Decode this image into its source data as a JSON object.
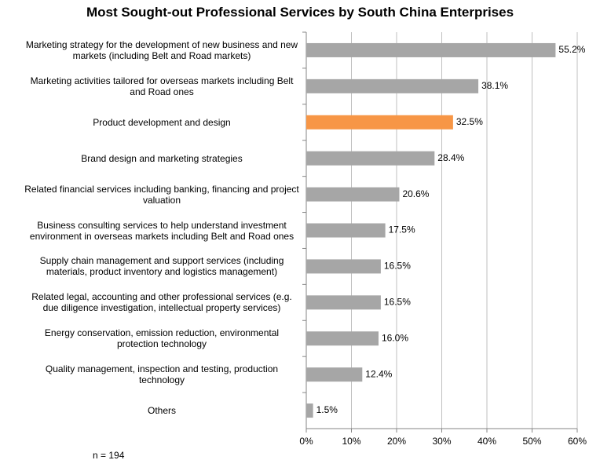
{
  "chart_data": {
    "type": "bar",
    "orientation": "horizontal",
    "title": "Most Sought-out Professional Services by South China Enterprises",
    "categories": [
      "Marketing strategy for the development of new business and new markets (including Belt and Road markets)",
      "Marketing activities tailored for overseas markets including Belt and Road ones",
      "Product development and design",
      "Brand design and marketing strategies",
      "Related financial services including banking, financing and project valuation",
      "Business consulting services to help understand investment environment in overseas markets including Belt and Road ones",
      "Supply chain management and support services (including materials, product inventory and logistics management)",
      "Related legal, accounting and other professional services (e.g. due diligence investigation, intellectual property services)",
      "Energy conservation, emission reduction, environmental protection technology",
      "Quality management, inspection and testing, production technology",
      "Others"
    ],
    "values": [
      55.2,
      38.1,
      32.5,
      28.4,
      20.6,
      17.5,
      16.5,
      16.5,
      16.0,
      12.4,
      1.5
    ],
    "value_labels": [
      "55.2%",
      "38.1%",
      "32.5%",
      "28.4%",
      "20.6%",
      "17.5%",
      "16.5%",
      "16.5%",
      "16.0%",
      "12.4%",
      "1.5%"
    ],
    "colors": [
      "#a6a6a6",
      "#a6a6a6",
      "#f79646",
      "#a6a6a6",
      "#a6a6a6",
      "#a6a6a6",
      "#a6a6a6",
      "#a6a6a6",
      "#a6a6a6",
      "#a6a6a6",
      "#a6a6a6"
    ],
    "xlim": [
      0,
      60
    ],
    "xticks": [
      {
        "value": 0,
        "label": "0%"
      },
      {
        "value": 10,
        "label": "10%"
      },
      {
        "value": 20,
        "label": "20%"
      },
      {
        "value": 30,
        "label": "30%"
      },
      {
        "value": 40,
        "label": "40%"
      },
      {
        "value": 50,
        "label": "50%"
      },
      {
        "value": 60,
        "label": "60%"
      }
    ],
    "grid": true,
    "note": "n = 194"
  }
}
